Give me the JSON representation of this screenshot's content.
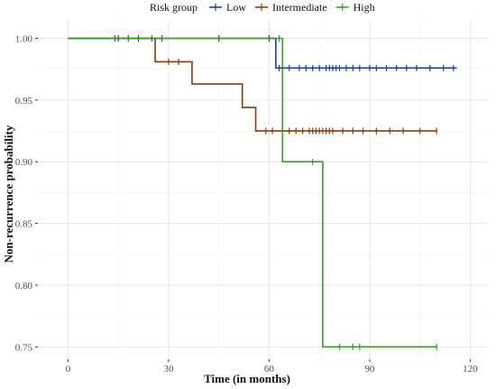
{
  "chart_data": {
    "type": "line",
    "subtype": "kaplan-meier step curve with censor marks",
    "xlabel": "Time (in months)",
    "ylabel": "Non-recurrence probability",
    "xlim": [
      -9,
      125
    ],
    "ylim": [
      0.74,
      1.015
    ],
    "x_ticks": [
      0,
      30,
      60,
      90,
      120
    ],
    "y_ticks": [
      0.75,
      0.8,
      0.85,
      0.9,
      0.95,
      1.0
    ],
    "x_tick_labels": [
      "0",
      "30",
      "60",
      "90",
      "120"
    ],
    "y_tick_labels": [
      "0.75",
      "0.80",
      "0.85",
      "0.90",
      "0.95",
      "1.00"
    ],
    "grid": true,
    "legend": {
      "title": "Risk group",
      "position": "top"
    },
    "series": [
      {
        "name": "Low",
        "color": "#1f3f8f",
        "steps": [
          [
            0,
            1.0
          ],
          [
            62,
            0.976
          ],
          [
            116,
            0.976
          ]
        ],
        "censors": [
          [
            15,
            1.0
          ],
          [
            21,
            1.0
          ],
          [
            28,
            1.0
          ],
          [
            45,
            1.0
          ],
          [
            60,
            1.0
          ],
          [
            63,
            0.976
          ],
          [
            66,
            0.976
          ],
          [
            69,
            0.976
          ],
          [
            71,
            0.976
          ],
          [
            73,
            0.976
          ],
          [
            75,
            0.976
          ],
          [
            77,
            0.976
          ],
          [
            78,
            0.976
          ],
          [
            79,
            0.976
          ],
          [
            80,
            0.976
          ],
          [
            81,
            0.976
          ],
          [
            83,
            0.976
          ],
          [
            85,
            0.976
          ],
          [
            87,
            0.976
          ],
          [
            90,
            0.976
          ],
          [
            92,
            0.976
          ],
          [
            95,
            0.976
          ],
          [
            98,
            0.976
          ],
          [
            101,
            0.976
          ],
          [
            104,
            0.976
          ],
          [
            108,
            0.976
          ],
          [
            112,
            0.976
          ],
          [
            115,
            0.976
          ]
        ]
      },
      {
        "name": "Intermediate",
        "color": "#8b3a0f",
        "steps": [
          [
            0,
            1.0
          ],
          [
            26,
            0.981
          ],
          [
            37,
            0.963
          ],
          [
            52,
            0.944
          ],
          [
            56,
            0.925
          ],
          [
            110,
            0.925
          ]
        ],
        "censors": [
          [
            14,
            1.0
          ],
          [
            18,
            1.0
          ],
          [
            25,
            1.0
          ],
          [
            30,
            0.981
          ],
          [
            33,
            0.981
          ],
          [
            59,
            0.925
          ],
          [
            61,
            0.925
          ],
          [
            64,
            0.925
          ],
          [
            66,
            0.925
          ],
          [
            68,
            0.925
          ],
          [
            70,
            0.925
          ],
          [
            72,
            0.925
          ],
          [
            73,
            0.925
          ],
          [
            74,
            0.925
          ],
          [
            75,
            0.925
          ],
          [
            76,
            0.925
          ],
          [
            77,
            0.925
          ],
          [
            78,
            0.925
          ],
          [
            79,
            0.925
          ],
          [
            82,
            0.925
          ],
          [
            85,
            0.925
          ],
          [
            88,
            0.925
          ],
          [
            92,
            0.925
          ],
          [
            96,
            0.925
          ],
          [
            100,
            0.925
          ],
          [
            105,
            0.925
          ],
          [
            110,
            0.925
          ]
        ]
      },
      {
        "name": "High",
        "color": "#3a9a2a",
        "steps": [
          [
            0,
            1.0
          ],
          [
            64,
            0.9
          ],
          [
            76,
            0.75
          ],
          [
            110,
            0.75
          ]
        ],
        "censors": [
          [
            63,
            1.0
          ],
          [
            73,
            0.9
          ],
          [
            81,
            0.75
          ],
          [
            85,
            0.75
          ],
          [
            87,
            0.75
          ],
          [
            110,
            0.75
          ]
        ]
      }
    ]
  }
}
